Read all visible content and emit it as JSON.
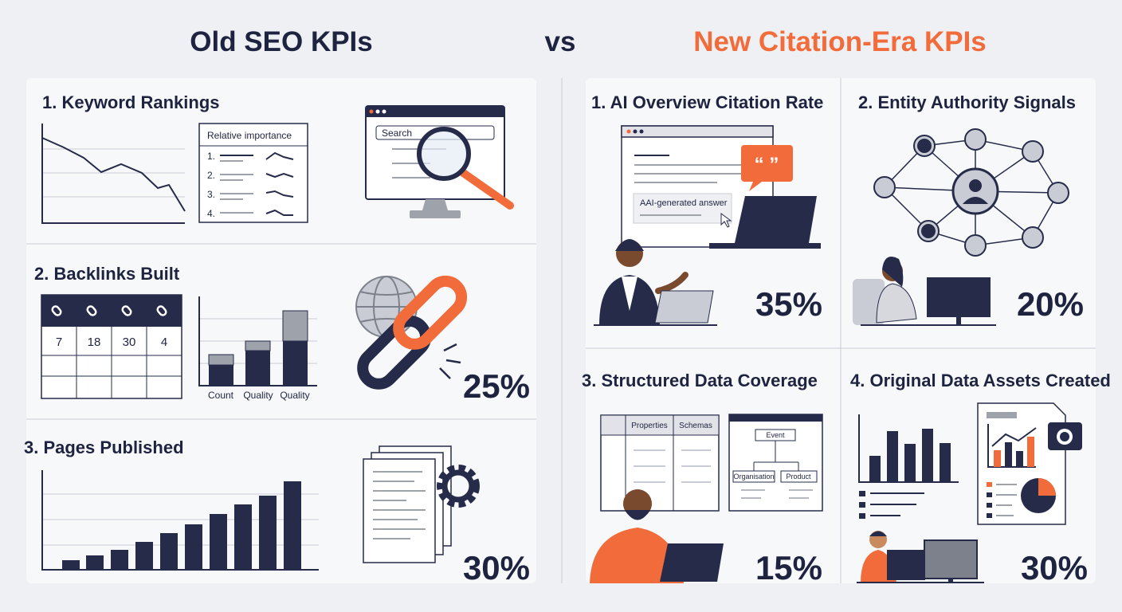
{
  "header": {
    "left_title": "Old SEO KPIs",
    "vs": "vs",
    "right_title": "New Citation-Era KPIs"
  },
  "old_kpis": [
    {
      "title": "1. Keyword Rankings",
      "panel_title": "Relative importance",
      "list": [
        "1.",
        "2.",
        "3.",
        "4."
      ],
      "search": "Search"
    },
    {
      "title": "2. Backlinks Built",
      "table": [
        "7",
        "18",
        "30",
        "4"
      ],
      "bar_labels": [
        "Count",
        "Quality",
        "Quality"
      ],
      "share": "25%"
    },
    {
      "title": "3. Pages Published",
      "share": "30%"
    }
  ],
  "new_kpis": [
    {
      "title": "1. AI Overview Citation Rate",
      "answer_label": "AAI-generated answer",
      "share": "35%"
    },
    {
      "title": "2. Entity Authority Signals",
      "share": "20%"
    },
    {
      "title": "3. Structured Data Coverage",
      "columns": [
        "Properties",
        "Schemas"
      ],
      "nodes": [
        "Event",
        "Organisation",
        "Product"
      ],
      "share": "15%"
    },
    {
      "title": "4. Original Data Assets Created",
      "share": "30%"
    }
  ]
}
